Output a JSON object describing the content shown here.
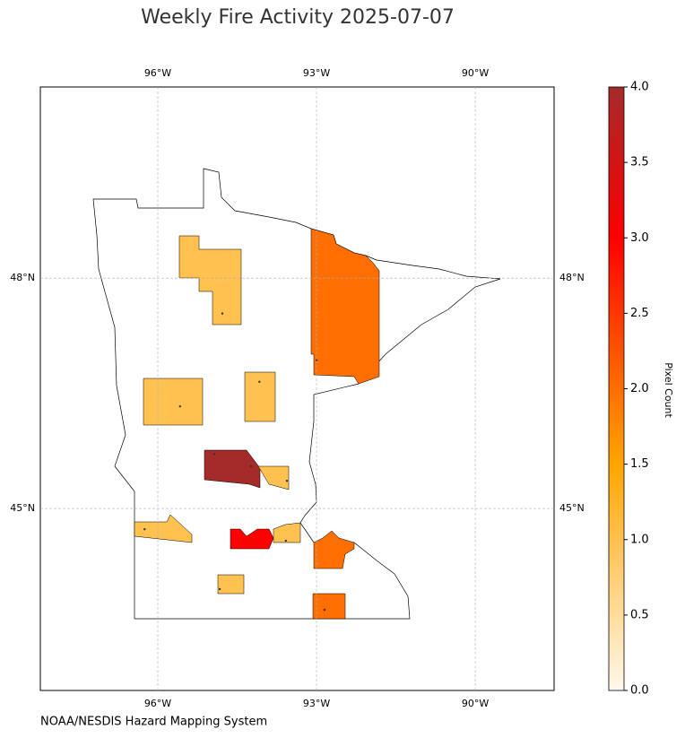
{
  "chart_data": {
    "type": "choropleth",
    "title": "Weekly Fire Activity 2025-07-07",
    "source": "NOAA/NESDIS Hazard Mapping System",
    "colorbar_label": "Pixel Count",
    "xlim": [
      -98.22,
      -88.51
    ],
    "ylim": [
      42.63,
      50.49
    ],
    "xticks": [
      {
        "value": -96,
        "label": "96°W"
      },
      {
        "value": -93,
        "label": "93°W"
      },
      {
        "value": -90,
        "label": "90°W"
      }
    ],
    "yticks": [
      {
        "value": 45,
        "label": "45°N"
      },
      {
        "value": 48,
        "label": "48°N"
      }
    ],
    "clim": [
      0,
      4
    ],
    "cticks": [
      {
        "value": 0,
        "label": "0.0"
      },
      {
        "value": 0.5,
        "label": "0.5"
      },
      {
        "value": 1,
        "label": "1.0"
      },
      {
        "value": 1.5,
        "label": "1.5"
      },
      {
        "value": 2,
        "label": "2.0"
      },
      {
        "value": 2.5,
        "label": "2.5"
      },
      {
        "value": 3,
        "label": "3.0"
      },
      {
        "value": 3.5,
        "label": "3.5"
      },
      {
        "value": 4,
        "label": "4.0"
      }
    ],
    "colormap": [
      {
        "value": 0,
        "color": "#fff8ec"
      },
      {
        "value": 1.5,
        "color": "#ffa500"
      },
      {
        "value": 3,
        "color": "#ff0000"
      },
      {
        "value": 4,
        "color": "#a52a2a"
      }
    ],
    "grid": true,
    "values": [
      1,
      2,
      1,
      1,
      4,
      1,
      1,
      3,
      1,
      2,
      1,
      2
    ],
    "detections": {
      "lon": [
        -94.78,
        -93.0,
        -94.08,
        -95.58,
        -94.93,
        -94.24,
        -93.56,
        -96.25,
        -93.58,
        -94.83,
        -92.85
      ],
      "lat": [
        47.54,
        46.93,
        46.65,
        46.33,
        45.71,
        45.55,
        45.36,
        44.73,
        44.58,
        43.95,
        43.68
      ]
    }
  }
}
